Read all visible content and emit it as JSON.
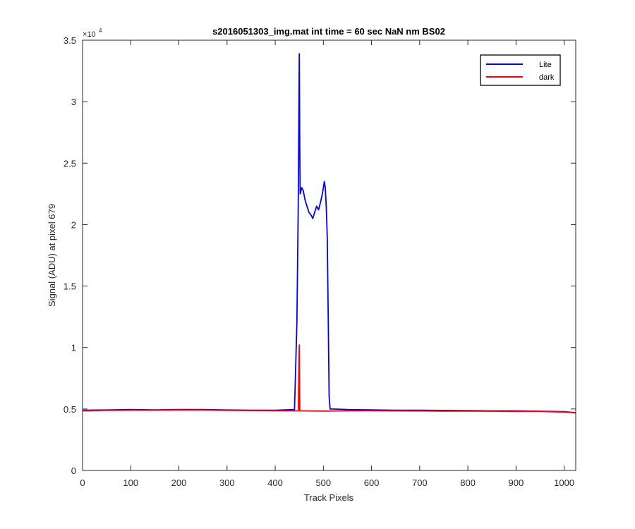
{
  "chart_data": {
    "type": "line",
    "title": "s2016051303_img.mat int time = 60 sec  NaN nm BS02",
    "xlabel": "Track Pixels",
    "ylabel": "Signal (ADU) at pixel 679",
    "y_exponent_label": "×10",
    "y_exponent_power": "4",
    "xlim": [
      0,
      1024
    ],
    "ylim": [
      0,
      35000
    ],
    "x_ticks": [
      0,
      100,
      200,
      300,
      400,
      500,
      600,
      700,
      800,
      900,
      1000
    ],
    "x_tick_labels": [
      "0",
      "100",
      "200",
      "300",
      "400",
      "500",
      "600",
      "700",
      "800",
      "900",
      "1000"
    ],
    "y_ticks": [
      0,
      5000,
      10000,
      15000,
      20000,
      25000,
      30000,
      35000
    ],
    "y_tick_labels": [
      "0",
      "0.5",
      "1",
      "1.5",
      "2",
      "2.5",
      "3",
      "3.5"
    ],
    "grid": false,
    "legend_position": "top-right",
    "series": [
      {
        "name": "Lite",
        "color": "#0000ff",
        "x": [
          0,
          50,
          100,
          150,
          200,
          250,
          300,
          350,
          400,
          440,
          445,
          448,
          450,
          451,
          452,
          455,
          458,
          462,
          466,
          470,
          474,
          478,
          482,
          486,
          490,
          494,
          498,
          502,
          504,
          506,
          508,
          510,
          512,
          514,
          520,
          550,
          600,
          650,
          700,
          750,
          800,
          850,
          900,
          950,
          1000,
          1024
        ],
        "y": [
          4900,
          4920,
          4950,
          4930,
          4960,
          4950,
          4920,
          4900,
          4900,
          4950,
          12000,
          22000,
          33900,
          26000,
          22500,
          23000,
          22800,
          22000,
          21500,
          21000,
          20800,
          20500,
          21000,
          21500,
          21200,
          21800,
          22500,
          23500,
          23000,
          21500,
          19000,
          13000,
          6000,
          5000,
          5000,
          4950,
          4930,
          4900,
          4900,
          4880,
          4870,
          4850,
          4850,
          4820,
          4780,
          4700
        ]
      },
      {
        "name": "dark",
        "color": "#ff0000",
        "x": [
          0,
          50,
          100,
          150,
          200,
          250,
          300,
          350,
          400,
          445,
          448,
          450,
          451,
          452,
          455,
          500,
          550,
          600,
          650,
          700,
          750,
          800,
          850,
          900,
          950,
          1000,
          1024
        ],
        "y": [
          4850,
          4880,
          4900,
          4900,
          4920,
          4910,
          4880,
          4870,
          4860,
          4850,
          4850,
          10200,
          4850,
          4850,
          4850,
          4830,
          4850,
          4860,
          4850,
          4840,
          4830,
          4830,
          4820,
          4800,
          4800,
          4750,
          4680
        ]
      }
    ]
  }
}
